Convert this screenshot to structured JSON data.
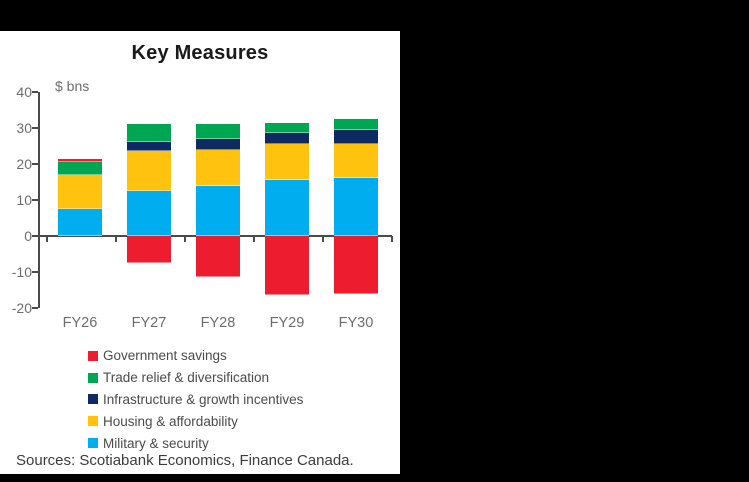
{
  "chart_data": {
    "type": "stacked-bar",
    "title": "Key Measures",
    "unit_label": "$ bns",
    "categories": [
      "FY26",
      "FY27",
      "FY28",
      "FY29",
      "FY30"
    ],
    "series": [
      {
        "name": "Government savings",
        "color": "#ED1C2E",
        "values": [
          1.0,
          -7.5,
          -11.5,
          -16.5,
          -16.0
        ]
      },
      {
        "name": "Trade relief & diversification",
        "color": "#00A651",
        "values": [
          3.5,
          5.0,
          4.0,
          3.0,
          3.0
        ]
      },
      {
        "name": "Infrastructure & growth incentives",
        "color": "#0D2A63",
        "values": [
          0.0,
          2.5,
          3.0,
          3.0,
          4.0
        ]
      },
      {
        "name": "Housing & affordability",
        "color": "#FFC20E",
        "values": [
          9.5,
          11.0,
          10.0,
          10.0,
          9.5
        ]
      },
      {
        "name": "Military & security",
        "color": "#00AEEF",
        "values": [
          7.5,
          12.5,
          14.0,
          15.5,
          16.0
        ]
      }
    ],
    "stack_order_bottom_up": [
      "Military & security",
      "Housing & affordability",
      "Infrastructure & growth incentives",
      "Trade relief & diversification",
      "Government savings"
    ],
    "y_ticks": [
      40,
      30,
      20,
      10,
      0,
      -10,
      -20
    ],
    "ylim": [
      -20,
      40
    ],
    "grid": false,
    "legend_position": "bottom-left",
    "sources": "Sources: Scotiabank Economics, Finance Canada."
  },
  "frame": {
    "background": "#000000",
    "panel_background": "#ffffff"
  }
}
